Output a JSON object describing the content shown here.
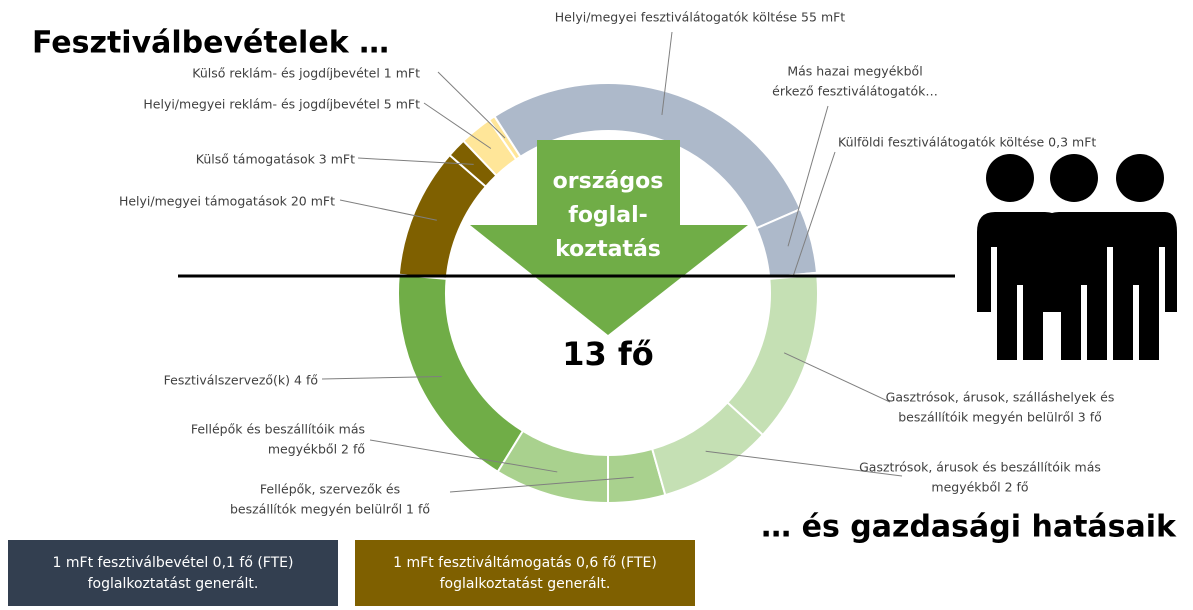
{
  "chart_data": {
    "type": "donut",
    "title": "Fesztiválbevételek …",
    "footer_title": "… és gazdasági hatásaik",
    "center_lines": [
      "országos",
      "foglal-",
      "koztatás"
    ],
    "center_total": "13 fő",
    "rings": [
      {
        "labels": [
          [
            "Helyi/megyei támogatások 20 mFt"
          ],
          [
            "Külső támogatások 3 mFt"
          ],
          [
            "Helyi/megyei reklám- és jogdíjbevétel 5 mFt"
          ],
          [
            "Külső reklám- és jogdíjbevétel 1 mFt"
          ],
          [
            "Helyi/megyei fesztiválátogatók költése 55 mFt"
          ],
          [
            "Más hazai megyékből",
            "érkező fesztiválátogatók…"
          ],
          [
            "Külföldi fesztiválátogatók költése 0,3 mFt"
          ]
        ],
        "values": [
          20,
          3,
          5,
          1,
          55,
          10,
          0.3
        ],
        "colors": [
          "#7f6000",
          "#7f6000",
          "#ffe699",
          "#ffe699",
          "#adb9ca",
          "#adb9ca",
          "#adb9ca"
        ]
      },
      {
        "labels": [
          [
            "Fesztiválszervező(k) 4 fő"
          ],
          [
            "Fellépők és beszállítóik más",
            "megyékből 2 fő"
          ],
          [
            "Fellépők, szervezők és",
            "beszállítók megyén belülről 1 fő"
          ],
          [
            "Gasztrósok, árusok és beszállítóik más",
            "megyékből 2 fő"
          ],
          [
            "Gasztrósok, árusok, szálláshelyek és",
            "beszállítóik megyén belülről 3 fő"
          ]
        ],
        "values": [
          4,
          2,
          1,
          2,
          3
        ],
        "colors": [
          "#70ad47",
          "#a9d18e",
          "#a9d18e",
          "#c5e0b4",
          "#c5e0b4"
        ]
      }
    ],
    "notes": [
      {
        "lines": [
          "1 mFt fesztiválbevétel 0,1 fő (FTE)",
          "foglalkoztatást generált."
        ],
        "color": "#333f50"
      },
      {
        "lines": [
          "1 mFt fesztiváltámogatás 0,6 fő (FTE)",
          "foglalkoztatást generált."
        ],
        "color": "#7f6000"
      }
    ]
  }
}
